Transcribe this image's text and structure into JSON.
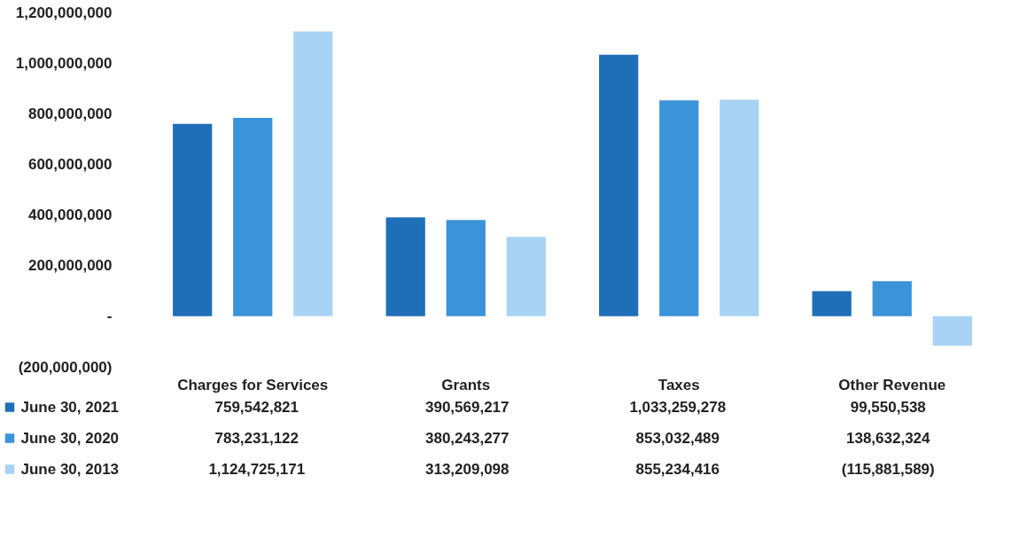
{
  "chart_data": {
    "type": "bar",
    "categories": [
      "Charges for Services",
      "Grants",
      "Taxes",
      "Other Revenue"
    ],
    "series": [
      {
        "name": "June 30, 2021",
        "color": "#1f6fb8",
        "values": [
          759542821,
          390569217,
          1033259278,
          99550538
        ],
        "value_labels": [
          "759,542,821",
          "390,569,217",
          "1,033,259,278",
          "99,550,538"
        ]
      },
      {
        "name": "June 30, 2020",
        "color": "#3b93d9",
        "values": [
          783231122,
          380243277,
          853032489,
          138632324
        ],
        "value_labels": [
          "783,231,122",
          "380,243,277",
          "853,032,489",
          "138,632,324"
        ]
      },
      {
        "name": "June 30, 2013",
        "color": "#a8d3f4",
        "values": [
          1124725171,
          313209098,
          855234416,
          -115881589
        ],
        "value_labels": [
          "1,124,725,171",
          "313,209,098",
          "855,234,416",
          "(115,881,589)"
        ]
      }
    ],
    "ylim": [
      -200000000,
      1200000000
    ],
    "yticks": [
      {
        "value": -200000000,
        "label": "(200,000,000)"
      },
      {
        "value": 0,
        "label": "-"
      },
      {
        "value": 200000000,
        "label": "200,000,000"
      },
      {
        "value": 400000000,
        "label": "400,000,000"
      },
      {
        "value": 600000000,
        "label": "600,000,000"
      },
      {
        "value": 800000000,
        "label": "800,000,000"
      },
      {
        "value": 1000000000,
        "label": "1,000,000,000"
      },
      {
        "value": 1200000000,
        "label": "1,200,000,000"
      }
    ],
    "grid": false,
    "legend": "bottom left"
  }
}
